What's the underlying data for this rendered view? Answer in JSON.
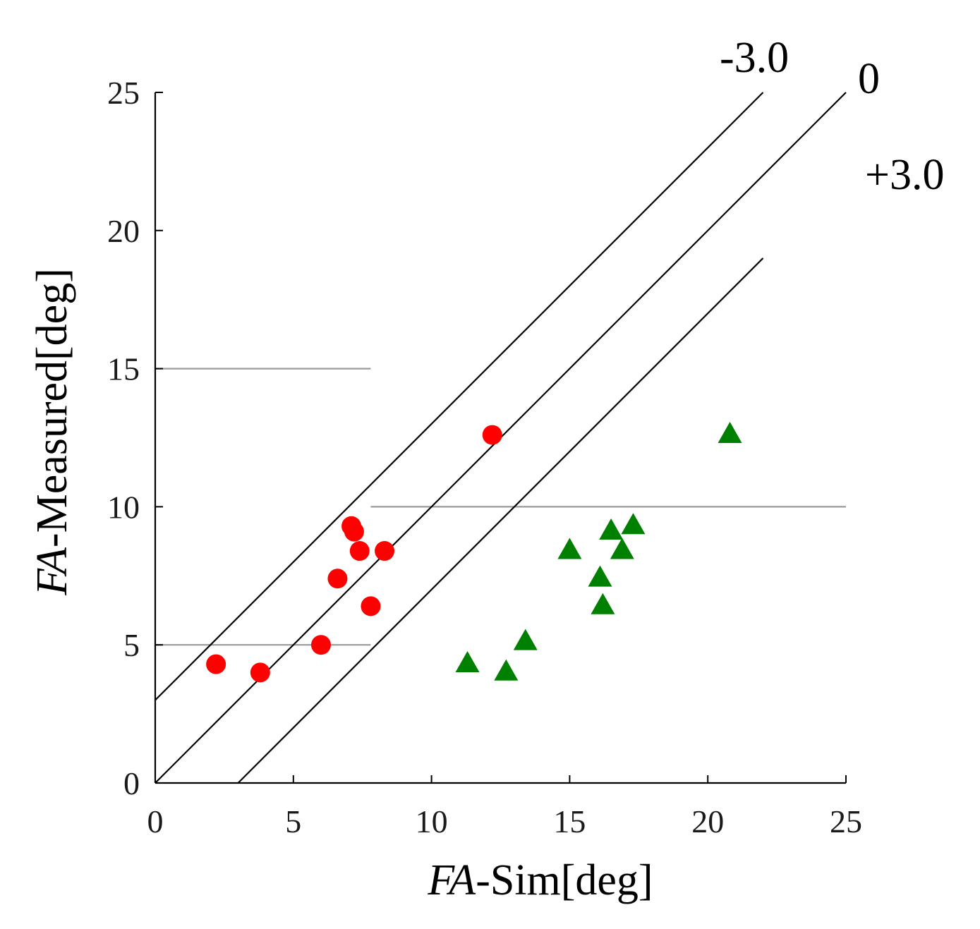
{
  "chart_data": {
    "type": "scatter",
    "title": "",
    "xlabel_italic": "FA",
    "xlabel_rest": "-Sim[deg]",
    "ylabel_italic": "FA",
    "ylabel_rest": "-Measured[deg]",
    "xlim": [
      0,
      25
    ],
    "ylim": [
      0,
      25
    ],
    "xticks": [
      0,
      5,
      10,
      15,
      20,
      25
    ],
    "yticks": [
      0,
      5,
      10,
      15,
      20,
      25
    ],
    "reference_lines": [
      {
        "label": "-3.0",
        "offset": 3.0
      },
      {
        "label": "0",
        "offset": 0.0
      },
      {
        "label": "+3.0",
        "offset": -3.0
      }
    ],
    "horizontal_guides": [
      {
        "y": 15,
        "x_from": 0,
        "x_to": 7.8
      },
      {
        "y": 10,
        "x_from": 7.8,
        "x_to": 25
      },
      {
        "y": 5,
        "x_from": 0,
        "x_to": 7.8
      }
    ],
    "series": [
      {
        "name": "circles",
        "marker": "circle",
        "color": "#ff0000",
        "points": [
          {
            "x": 2.2,
            "y": 4.3
          },
          {
            "x": 3.8,
            "y": 4.0
          },
          {
            "x": 6.0,
            "y": 5.0
          },
          {
            "x": 6.6,
            "y": 7.4
          },
          {
            "x": 7.1,
            "y": 9.3
          },
          {
            "x": 7.2,
            "y": 9.1
          },
          {
            "x": 7.4,
            "y": 8.4
          },
          {
            "x": 7.8,
            "y": 6.4
          },
          {
            "x": 8.3,
            "y": 8.4
          },
          {
            "x": 12.2,
            "y": 12.6
          }
        ]
      },
      {
        "name": "triangles",
        "marker": "triangle",
        "color": "#008000",
        "points": [
          {
            "x": 11.3,
            "y": 4.3
          },
          {
            "x": 12.7,
            "y": 4.0
          },
          {
            "x": 13.4,
            "y": 5.1
          },
          {
            "x": 15.0,
            "y": 8.4
          },
          {
            "x": 16.1,
            "y": 7.4
          },
          {
            "x": 16.2,
            "y": 6.4
          },
          {
            "x": 16.5,
            "y": 9.1
          },
          {
            "x": 16.9,
            "y": 8.4
          },
          {
            "x": 17.3,
            "y": 9.3
          },
          {
            "x": 20.8,
            "y": 12.6
          }
        ]
      }
    ]
  }
}
